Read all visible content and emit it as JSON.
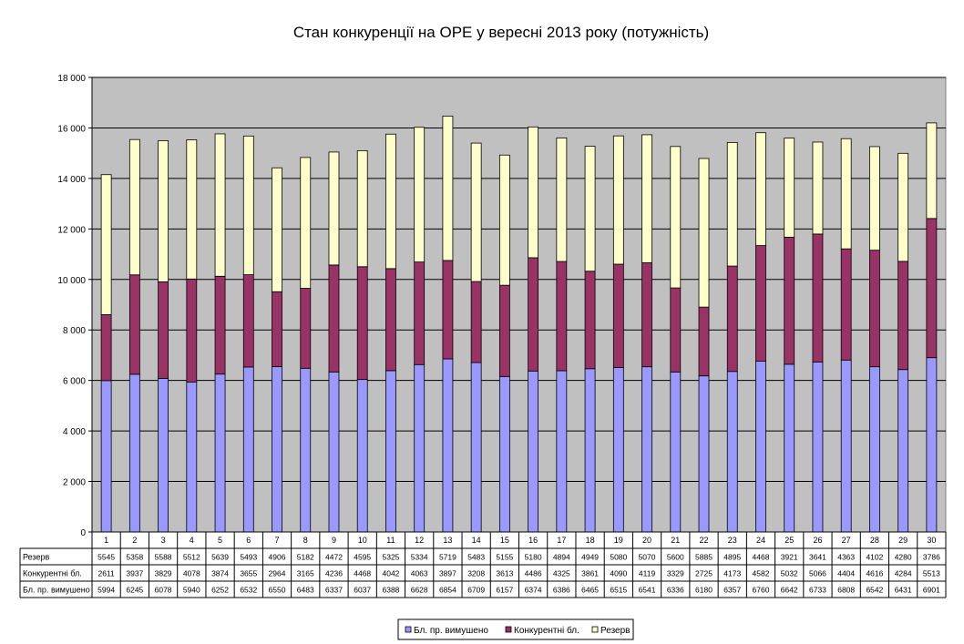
{
  "chart_data": {
    "type": "bar",
    "stacked": true,
    "title": "Стан конкуренції на ОРЕ  у вересні 2013 року (потужність)",
    "categories": [
      "1",
      "2",
      "3",
      "4",
      "5",
      "6",
      "7",
      "8",
      "9",
      "10",
      "11",
      "12",
      "13",
      "14",
      "15",
      "16",
      "17",
      "18",
      "19",
      "20",
      "21",
      "22",
      "23",
      "24",
      "25",
      "26",
      "27",
      "28",
      "29",
      "30"
    ],
    "yticks": [
      "0",
      "2 000",
      "4 000",
      "6 000",
      "8 000",
      "10 000",
      "12 000",
      "14 000",
      "16 000",
      "18 000"
    ],
    "ylim": [
      0,
      18000
    ],
    "grid": true,
    "legend": "bottom",
    "series": [
      {
        "name": "Бл. пр. вимушено",
        "color": "#9999ff",
        "values": [
          5994,
          6245,
          6078,
          5940,
          6252,
          6532,
          6550,
          6483,
          6337,
          6037,
          6388,
          6628,
          6854,
          6709,
          6157,
          6374,
          6386,
          6465,
          6515,
          6541,
          6336,
          6180,
          6357,
          6760,
          6642,
          6733,
          6808,
          6542,
          6431,
          6901
        ]
      },
      {
        "name": "Конкурентні бл.",
        "color": "#993366",
        "values": [
          2611,
          3937,
          3829,
          4078,
          3874,
          3655,
          2964,
          3165,
          4236,
          4468,
          4042,
          4063,
          3897,
          3208,
          3613,
          4486,
          4325,
          3861,
          4090,
          4119,
          3329,
          2725,
          4173,
          4582,
          5032,
          5066,
          4404,
          4616,
          4284,
          5513
        ]
      },
      {
        "name": "Резерв",
        "color": "#ffffcc",
        "values": [
          5545,
          5358,
          5588,
          5512,
          5639,
          5493,
          4906,
          5182,
          4472,
          4595,
          5325,
          5334,
          5719,
          5483,
          5155,
          5180,
          4894,
          4949,
          5080,
          5070,
          5600,
          5885,
          4895,
          4468,
          3921,
          3641,
          4363,
          4102,
          4280,
          3786
        ]
      }
    ],
    "table_rows": [
      "Резерв",
      "Конкурентні бл.",
      "Бл. пр. вимушено"
    ]
  },
  "colors": {
    "plot_bg": "#c0c0c0",
    "bar_edge": "#000000"
  }
}
